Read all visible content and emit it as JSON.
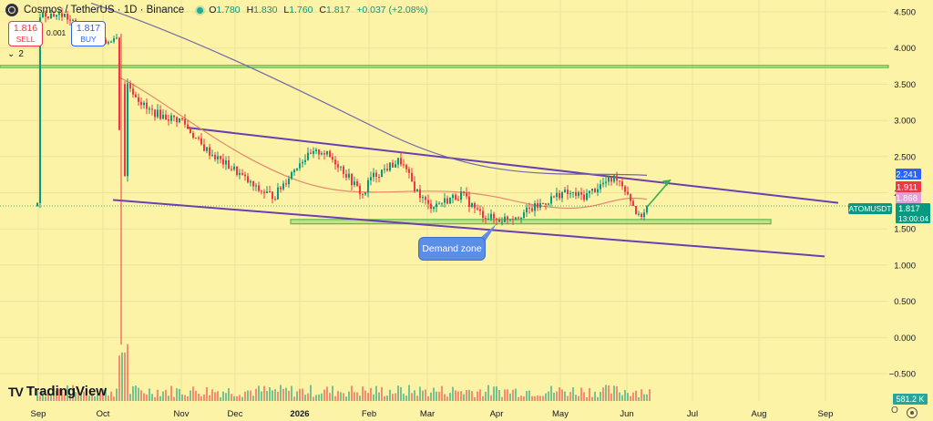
{
  "header": {
    "symbol_title": "Cosmos / TetherUS · 1D · Binance",
    "ohlc": {
      "o_label": "O",
      "o_value": "1.780",
      "h_label": "H",
      "h_value": "1.830",
      "l_label": "L",
      "l_value": "1.760",
      "c_label": "C",
      "c_value": "1.817",
      "change": "+0.037 (+2.08%)"
    }
  },
  "quote": {
    "sell_price": "1.816",
    "sell_label": "SELL",
    "spread": "0.001",
    "buy_price": "1.817",
    "buy_label": "BUY"
  },
  "indicators_toggle": "2",
  "annotation": {
    "demand_zone": "Demand zone"
  },
  "branding": {
    "logo_text": "TradingView",
    "logo_mark": "TV"
  },
  "axis_controls": {
    "log_toggle": "O"
  },
  "colors": {
    "background": "#fdf3a7",
    "up": "#089981",
    "down": "#f23645",
    "channel": "#6c3fb0",
    "zone": "#8fd46f",
    "ma_slow": "#6f6aa8",
    "ma_mid": "#e38b6b",
    "arrow": "#36b24a"
  },
  "chart_data": {
    "type": "candlestick",
    "symbol": "ATOMUSDT",
    "interval": "1D",
    "x_ticks": [
      "Sep",
      "Oct",
      "Nov",
      "Dec",
      "2026",
      "Feb",
      "Mar",
      "Apr",
      "May",
      "Jun",
      "Jul",
      "Aug",
      "Sep"
    ],
    "y_ticks": [
      "4.500",
      "4.000",
      "3.500",
      "3.000",
      "2.500",
      "2.000",
      "1.500",
      "1.000",
      "0.500",
      "0.000",
      "−0.500"
    ],
    "ylim": [
      -0.65,
      4.62
    ],
    "price_series": [
      [
        "Sep",
        4.48
      ],
      [
        "mid-Sep",
        4.45
      ],
      [
        "late-Sep",
        4.15
      ],
      [
        "Oct",
        4.05
      ],
      [
        "Oct 9",
        4.2
      ],
      [
        "Oct 10",
        1.0
      ],
      [
        "Oct 11",
        3.5
      ],
      [
        "mid-Oct",
        3.15
      ],
      [
        "late-Oct",
        3.05
      ],
      [
        "Nov",
        3.0
      ],
      [
        "mid-Nov",
        2.65
      ],
      [
        "late-Nov",
        2.45
      ],
      [
        "Dec",
        2.3
      ],
      [
        "mid-Dec",
        2.05
      ],
      [
        "late-Dec",
        1.95
      ],
      [
        "2026",
        2.45
      ],
      [
        "Jan 12",
        2.58
      ],
      [
        "mid-Jan",
        2.4
      ],
      [
        "late-Jan",
        1.95
      ],
      [
        "Feb",
        2.2
      ],
      [
        "Feb 10",
        2.45
      ],
      [
        "mid-Feb",
        2.05
      ],
      [
        "late-Feb",
        1.85
      ],
      [
        "Mar",
        1.82
      ],
      [
        "mid-Mar",
        1.98
      ],
      [
        "late-Mar",
        1.72
      ],
      [
        "Apr",
        1.62
      ],
      [
        "mid-Apr",
        1.7
      ],
      [
        "late-Apr",
        1.85
      ],
      [
        "May",
        2.0
      ],
      [
        "mid-May",
        1.95
      ],
      [
        "late-May",
        2.12
      ],
      [
        "May 28",
        2.22
      ],
      [
        "Jun",
        2.0
      ],
      [
        "Jun 4",
        1.65
      ],
      [
        "Jun 8",
        1.817
      ]
    ],
    "moving_averages": [
      {
        "label": "slow",
        "last_value": 2.241
      },
      {
        "label": "mid",
        "last_value": 1.911
      },
      {
        "label": "fast",
        "last_value": 1.868
      }
    ],
    "price_labels": [
      {
        "text": "2.241",
        "color": "#2962ff"
      },
      {
        "text": "1.911",
        "color": "#f23645"
      },
      {
        "text": "1.868",
        "color": "#e1a0d8"
      }
    ],
    "last_price": {
      "symbol": "ATOMUSDT",
      "value": "1.817",
      "countdown": "13:00:04",
      "color": "#089981"
    },
    "volume_label": "581.2 K",
    "resistance_band": [
      3.73,
      3.76
    ],
    "channel_upper": {
      "from": [
        "Nov",
        2.9
      ],
      "to": [
        "Sep",
        1.86
      ]
    },
    "channel_lower": {
      "from": [
        "Oct",
        1.9
      ],
      "to": [
        "Sep",
        1.12
      ]
    },
    "demand_zone": {
      "low": 1.57,
      "high": 1.63,
      "from": "Dec",
      "to": "Jun"
    },
    "projection_arrow": {
      "from": [
        "Jun 8",
        1.8
      ],
      "to": [
        "Jun 20",
        2.18
      ]
    }
  }
}
